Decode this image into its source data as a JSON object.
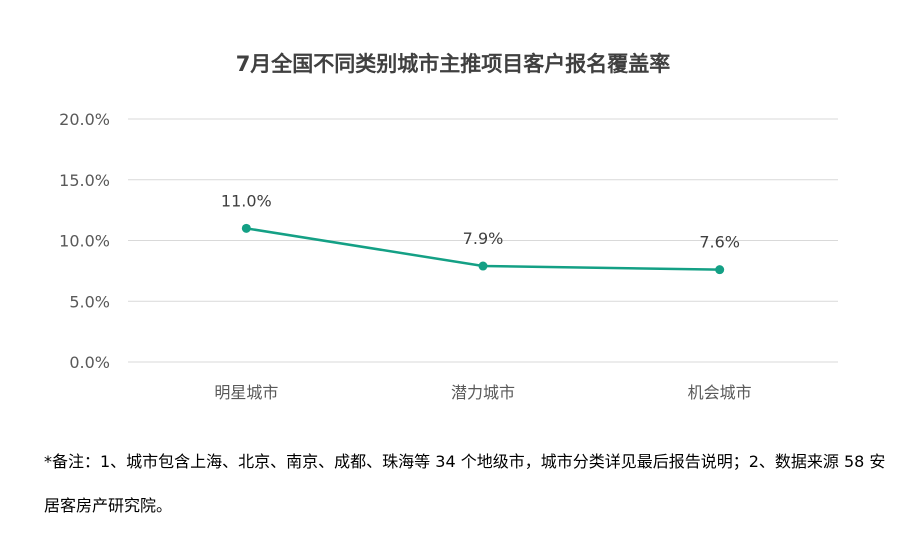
{
  "chart_data": {
    "type": "line",
    "title": "7月全国不同类别城市主推项目客户报名覆盖率",
    "categories": [
      "明星城市",
      "潜力城市",
      "机会城市"
    ],
    "series": [
      {
        "values": [
          11.0,
          7.9,
          7.6
        ],
        "labels": [
          "11.0%",
          "7.9%",
          "7.6%"
        ]
      }
    ],
    "ylim": [
      0,
      20
    ],
    "yticks": [
      0,
      5,
      10,
      15,
      20
    ],
    "ytick_labels": [
      "0.0%",
      "5.0%",
      "10.0%",
      "15.0%",
      "20.0%"
    ],
    "xlabel": "",
    "ylabel": "",
    "grid": true,
    "legend": "none",
    "line_color": "#14a085",
    "grid_color": "#d9d9d9"
  },
  "footnote": "*备注：1、城市包含上海、北京、南京、成都、珠海等 34 个地级市，城市分类详见最后报告说明；2、数据来源 58 安居客房产研究院。"
}
